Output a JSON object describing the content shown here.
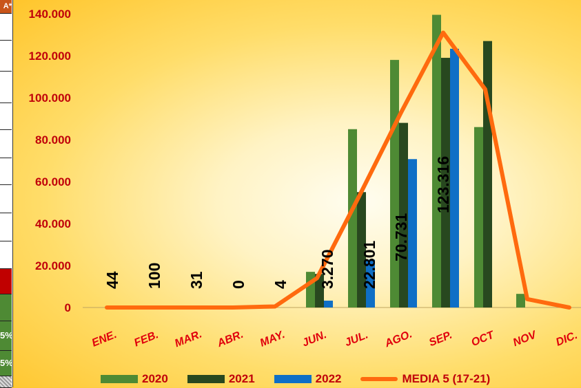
{
  "strip": {
    "top_label": "A*",
    "pct_a": "5%",
    "pct_b": "5%"
  },
  "colors": {
    "s2020": "#4e8a34",
    "s2021": "#28481f",
    "s2022": "#0f6fc6",
    "media": "#ff6a0e",
    "tick": "#c0000a",
    "category": "#e0000c"
  },
  "chart_data": {
    "type": "bar",
    "categories": [
      "ENE.",
      "FEB.",
      "MAR.",
      "ABR.",
      "MAY.",
      "JUN.",
      "JUL.",
      "AGO.",
      "SEP.",
      "OCT",
      "NOV",
      "DIC."
    ],
    "ylim": [
      0,
      140000
    ],
    "yticks": [
      0,
      20000,
      40000,
      60000,
      80000,
      100000,
      120000,
      140000
    ],
    "ytick_labels": [
      "0",
      "20.000",
      "40.000",
      "60.000",
      "80.000",
      "100.000",
      "120.000",
      "140.000"
    ],
    "series": [
      {
        "name": "2020",
        "type": "bar",
        "values": [
          0,
          0,
          0,
          0,
          0,
          17000,
          85000,
          118000,
          139500,
          86000,
          6500,
          0
        ]
      },
      {
        "name": "2021",
        "type": "bar",
        "values": [
          0,
          0,
          0,
          0,
          0,
          16000,
          55000,
          88000,
          119000,
          127000,
          0,
          0
        ]
      },
      {
        "name": "2022",
        "type": "bar",
        "values": [
          44,
          100,
          31,
          0,
          4,
          3270,
          22801,
          70731,
          123316,
          null,
          null,
          null
        ]
      },
      {
        "name": "MEDIA 5 (17-21)",
        "type": "line",
        "values": [
          0,
          0,
          0,
          0,
          500,
          14000,
          53000,
          93000,
          131000,
          104000,
          4000,
          0
        ]
      }
    ],
    "data_labels": [
      "44",
      "100",
      "31",
      "0",
      "4",
      "3.270",
      "22.801",
      "70.731",
      "123.316"
    ],
    "legend_position": "bottom",
    "grid": false
  }
}
